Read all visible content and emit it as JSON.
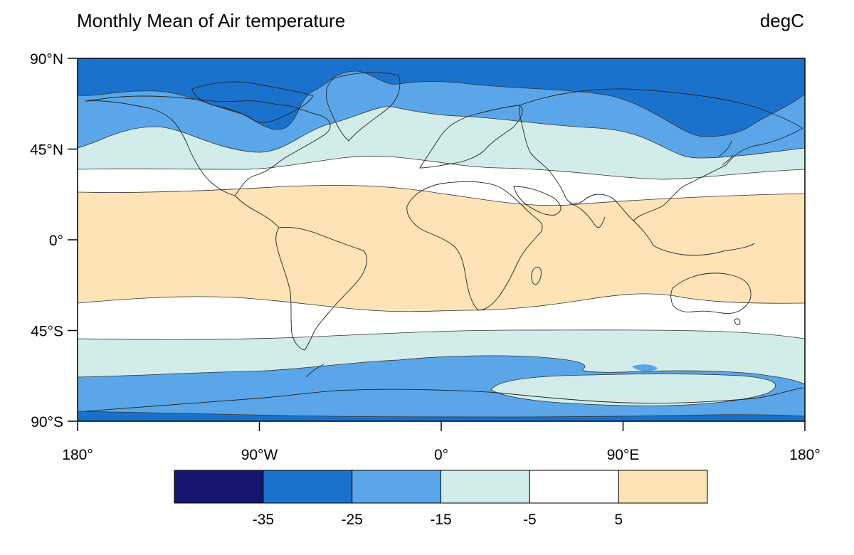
{
  "title": "Monthly Mean of Air temperature",
  "units": "degC",
  "lat_ticks": [
    {
      "label": "90°N",
      "value": 90
    },
    {
      "label": "45°N",
      "value": 45
    },
    {
      "label": "0°",
      "value": 0
    },
    {
      "label": "45°S",
      "value": -45
    },
    {
      "label": "90°S",
      "value": -90
    }
  ],
  "lon_ticks": [
    {
      "label": "180°",
      "value": -180
    },
    {
      "label": "90°W",
      "value": -90
    },
    {
      "label": "0°",
      "value": 0
    },
    {
      "label": "90°E",
      "value": 90
    },
    {
      "label": "180°",
      "value": 180
    }
  ],
  "colorbar": {
    "colors": [
      "#16166e",
      "#1a72cc",
      "#5aa6e8",
      "#d2ecea",
      "#ffffff",
      "#fde3b6"
    ],
    "labels": [
      "-35",
      "-25",
      "-15",
      "-5",
      "5"
    ]
  },
  "chart_data": {
    "type": "heatmap",
    "title": "Monthly Mean of Air temperature",
    "units": "degC",
    "levels": [
      -35,
      -25,
      -15,
      -5,
      5
    ],
    "xlabel": "",
    "ylabel": "",
    "xlim": [
      -180,
      180
    ],
    "ylim": [
      -90,
      90
    ]
  }
}
